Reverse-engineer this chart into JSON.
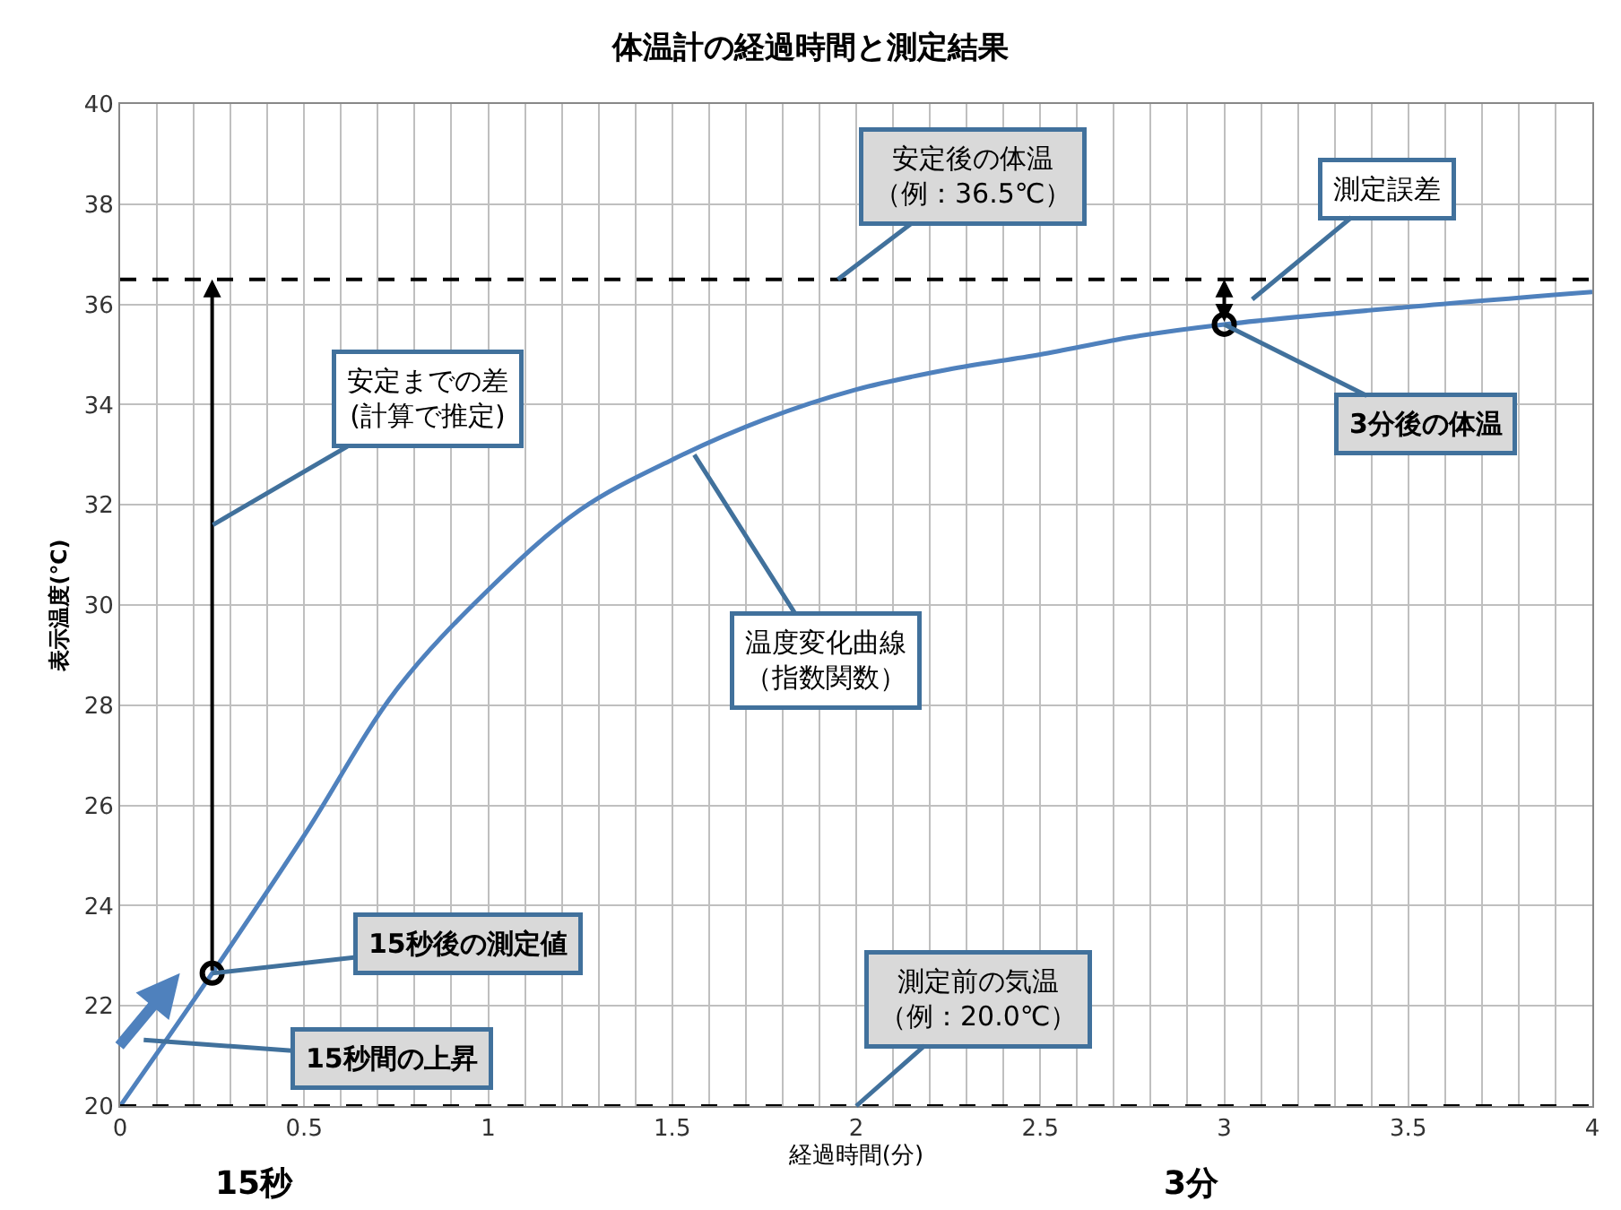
{
  "chart_data": {
    "type": "line",
    "title": "体温計の経過時間と測定結果",
    "xlabel": "経過時間(分)",
    "ylabel": "表示温度(℃)",
    "series": [
      {
        "color": "#4f81bd",
        "x": [
          0,
          0.1,
          0.25,
          0.5,
          0.75,
          1,
          1.25,
          1.5,
          1.75,
          2,
          2.25,
          2.5,
          2.75,
          3,
          3.5,
          4
        ],
        "values": [
          20,
          21.05,
          22.65,
          25.4,
          28.3,
          30.3,
          31.9,
          32.9,
          33.7,
          34.3,
          34.7,
          35.0,
          35.35,
          35.6,
          35.95,
          36.25
        ]
      },
      {
        "type": "scatter",
        "color": "#000000",
        "marker": "circle",
        "x": [
          0.25,
          3
        ],
        "values": [
          22.65,
          35.6
        ]
      }
    ],
    "xlim": [
      0,
      4
    ],
    "ylim": [
      20,
      40
    ],
    "xticks": [
      0,
      {
        "value": 0.1,
        "label": null
      },
      {
        "value": 0.2,
        "label": null
      },
      {
        "value": 0.3,
        "label": null
      },
      {
        "value": 0.4,
        "label": null
      },
      0.5,
      {
        "value": 0.6,
        "label": null
      },
      {
        "value": 0.7,
        "label": null
      },
      {
        "value": 0.8,
        "label": null
      },
      {
        "value": 0.9,
        "label": null
      },
      1,
      {
        "value": 1.1,
        "label": null
      },
      {
        "value": 1.2,
        "label": null
      },
      {
        "value": 1.3,
        "label": null
      },
      {
        "value": 1.4,
        "label": null
      },
      1.5,
      {
        "value": 1.6,
        "label": null
      },
      {
        "value": 1.7,
        "label": null
      },
      {
        "value": 1.8,
        "label": null
      },
      {
        "value": 1.9,
        "label": null
      },
      2,
      {
        "value": 2.1,
        "label": null
      },
      {
        "value": 2.2,
        "label": null
      },
      {
        "value": 2.3,
        "label": null
      },
      {
        "value": 2.4,
        "label": null
      },
      2.5,
      {
        "value": 2.6,
        "label": null
      },
      {
        "value": 2.7,
        "label": null
      },
      {
        "value": 2.8,
        "label": null
      },
      {
        "value": 2.9,
        "label": null
      },
      3,
      {
        "value": 3.1,
        "label": null
      },
      {
        "value": 3.2,
        "label": null
      },
      {
        "value": 3.3,
        "label": null
      },
      {
        "value": 3.4,
        "label": null
      },
      3.5,
      {
        "value": 3.6,
        "label": null
      },
      {
        "value": 3.7,
        "label": null
      },
      {
        "value": 3.8,
        "label": null
      },
      {
        "value": 3.9,
        "label": null
      },
      4
    ],
    "yticks": [
      20,
      22,
      24,
      26,
      28,
      30,
      32,
      34,
      36,
      38,
      40
    ],
    "grid": true,
    "ref_lines": [
      {
        "axis": "y",
        "value": 36.5,
        "color": "#000000",
        "line_style": "dashed"
      },
      {
        "axis": "y",
        "value": 20,
        "color": "#000000",
        "line_style": "dashed"
      }
    ],
    "annotations": [
      {
        "text": "安定後の体温（例：36.5℃）",
        "x": 1.95,
        "y": 36.5
      },
      "測定誤差",
      "安定までの差(計算で推定)",
      {
        "text": "3分後の体温",
        "x": 3,
        "y": 35.6
      },
      {
        "text": "温度変化曲線（指数関数）",
        "x": 1.56,
        "y": 33.0
      },
      {
        "text": "15秒後の測定値",
        "x": 0.25,
        "y": 22.65
      },
      "15秒間の上昇",
      {
        "text": "測定前の気温（例：20.0℃）",
        "x": 2,
        "y": 20
      },
      "15秒",
      "3分"
    ]
  }
}
